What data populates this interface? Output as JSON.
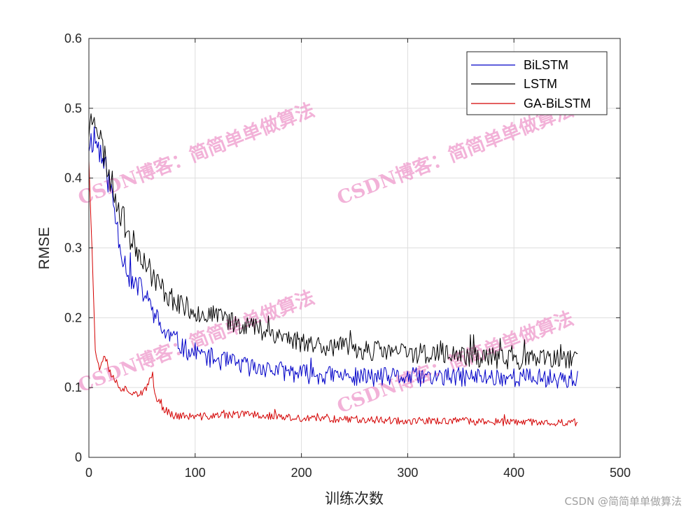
{
  "chart_data": {
    "type": "line",
    "xlabel": "训练次数",
    "ylabel": "RMSE",
    "xlim": [
      0,
      500
    ],
    "ylim": [
      0,
      0.6
    ],
    "xticks": [
      0,
      100,
      200,
      300,
      400,
      500
    ],
    "yticks": [
      0,
      0.1,
      0.2,
      0.3,
      0.4,
      0.5,
      0.6
    ],
    "grid": true,
    "legend_position": "top-right",
    "series": [
      {
        "name": "BiLSTM",
        "color": "#0000c8",
        "x_start": 0,
        "x_end": 460,
        "noise": 0.018,
        "seed": 11,
        "trend": [
          [
            0,
            0.45
          ],
          [
            5,
            0.46
          ],
          [
            10,
            0.44
          ],
          [
            20,
            0.39
          ],
          [
            30,
            0.3
          ],
          [
            40,
            0.25
          ],
          [
            50,
            0.24
          ],
          [
            60,
            0.21
          ],
          [
            70,
            0.18
          ],
          [
            80,
            0.17
          ],
          [
            90,
            0.155
          ],
          [
            100,
            0.15
          ],
          [
            120,
            0.14
          ],
          [
            150,
            0.13
          ],
          [
            200,
            0.12
          ],
          [
            250,
            0.115
          ],
          [
            300,
            0.115
          ],
          [
            350,
            0.115
          ],
          [
            400,
            0.115
          ],
          [
            460,
            0.112
          ]
        ]
      },
      {
        "name": "LSTM",
        "color": "#000000",
        "x_start": 0,
        "x_end": 460,
        "noise": 0.018,
        "seed": 23,
        "trend": [
          [
            0,
            0.47
          ],
          [
            5,
            0.5
          ],
          [
            10,
            0.46
          ],
          [
            20,
            0.4
          ],
          [
            30,
            0.35
          ],
          [
            40,
            0.31
          ],
          [
            50,
            0.29
          ],
          [
            60,
            0.26
          ],
          [
            70,
            0.24
          ],
          [
            80,
            0.225
          ],
          [
            90,
            0.215
          ],
          [
            100,
            0.21
          ],
          [
            120,
            0.2
          ],
          [
            150,
            0.19
          ],
          [
            200,
            0.165
          ],
          [
            250,
            0.155
          ],
          [
            300,
            0.15
          ],
          [
            350,
            0.145
          ],
          [
            400,
            0.14
          ],
          [
            460,
            0.14
          ]
        ]
      },
      {
        "name": "GA-BiLSTM",
        "color": "#d40000",
        "x_start": 0,
        "x_end": 460,
        "noise": 0.008,
        "seed": 37,
        "trend": [
          [
            0,
            0.43
          ],
          [
            3,
            0.3
          ],
          [
            6,
            0.15
          ],
          [
            10,
            0.13
          ],
          [
            15,
            0.15
          ],
          [
            20,
            0.12
          ],
          [
            30,
            0.1
          ],
          [
            40,
            0.095
          ],
          [
            50,
            0.09
          ],
          [
            55,
            0.1
          ],
          [
            60,
            0.12
          ],
          [
            62,
            0.09
          ],
          [
            70,
            0.07
          ],
          [
            80,
            0.06
          ],
          [
            100,
            0.058
          ],
          [
            150,
            0.062
          ],
          [
            200,
            0.055
          ],
          [
            250,
            0.055
          ],
          [
            300,
            0.052
          ],
          [
            350,
            0.052
          ],
          [
            400,
            0.05
          ],
          [
            460,
            0.05
          ]
        ]
      }
    ]
  },
  "watermark_text": "CSDN博客：简简单单做算法",
  "credit_text": "CSDN @简简单单做算法"
}
